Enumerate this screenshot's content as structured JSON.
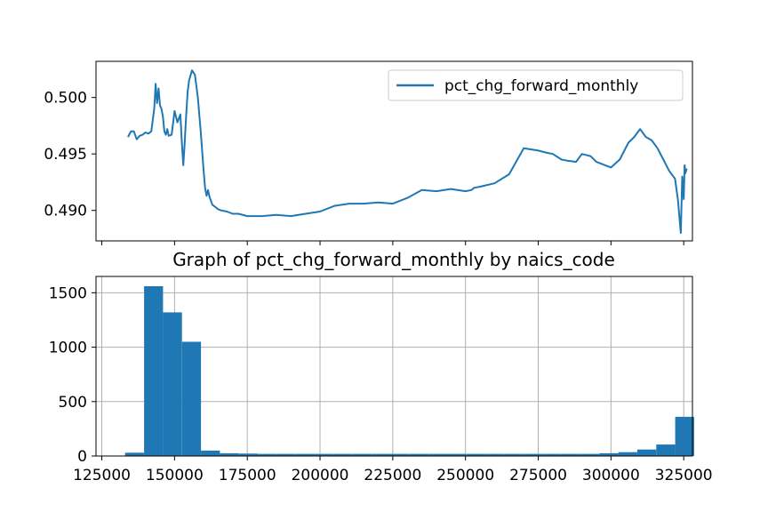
{
  "chart_data": [
    {
      "type": "line",
      "title": "",
      "xlabel": "",
      "ylabel": "",
      "x_shared_with_histogram": true,
      "x": [
        134000,
        135000,
        136000,
        137000,
        138000,
        139000,
        140000,
        141000,
        142000,
        143000,
        143500,
        144000,
        144500,
        145000,
        145500,
        146000,
        146500,
        147000,
        147500,
        148000,
        149000,
        150000,
        151000,
        152000,
        152500,
        153000,
        153500,
        154000,
        154500,
        155000,
        156000,
        157000,
        158000,
        159000,
        160000,
        160500,
        161000,
        161500,
        162000,
        163000,
        164000,
        165000,
        166000,
        168000,
        170000,
        172000,
        175000,
        180000,
        185000,
        190000,
        195000,
        200000,
        205000,
        210000,
        215000,
        220000,
        225000,
        230000,
        235000,
        240000,
        245000,
        250000,
        252000,
        253000,
        255000,
        260000,
        265000,
        270000,
        275000,
        278000,
        280000,
        283000,
        285000,
        288000,
        290000,
        293000,
        295000,
        298000,
        300000,
        303000,
        306000,
        308000,
        310000,
        312000,
        314000,
        316000,
        318000,
        320000,
        322000,
        323000,
        324000,
        324500,
        325000,
        325300,
        325600,
        326000
      ],
      "series": [
        {
          "name": "pct_chg_forward_monthly",
          "color": "#1f77b4",
          "values": [
            0.4965,
            0.497,
            0.497,
            0.4963,
            0.4966,
            0.4967,
            0.4969,
            0.4968,
            0.497,
            0.499,
            0.5012,
            0.4995,
            0.5008,
            0.4993,
            0.499,
            0.4983,
            0.497,
            0.4967,
            0.4972,
            0.4966,
            0.4967,
            0.4988,
            0.4978,
            0.4985,
            0.496,
            0.494,
            0.496,
            0.4985,
            0.5005,
            0.5015,
            0.5024,
            0.502,
            0.5,
            0.497,
            0.4935,
            0.492,
            0.4913,
            0.4918,
            0.4912,
            0.4905,
            0.4903,
            0.4901,
            0.49,
            0.4899,
            0.4897,
            0.4897,
            0.4895,
            0.4895,
            0.4896,
            0.4895,
            0.4897,
            0.4899,
            0.4904,
            0.4906,
            0.4906,
            0.4907,
            0.4906,
            0.4911,
            0.4918,
            0.4917,
            0.4919,
            0.4917,
            0.4918,
            0.492,
            0.4921,
            0.4924,
            0.4932,
            0.4955,
            0.4953,
            0.4951,
            0.495,
            0.4945,
            0.4944,
            0.4943,
            0.495,
            0.4948,
            0.4943,
            0.494,
            0.4938,
            0.4945,
            0.496,
            0.4965,
            0.4972,
            0.4965,
            0.4962,
            0.4955,
            0.4945,
            0.4935,
            0.4928,
            0.491,
            0.488,
            0.493,
            0.491,
            0.494,
            0.4933,
            0.4937
          ]
        }
      ],
      "xlim": [
        123000,
        328000
      ],
      "ylim": [
        0.4873,
        0.5032
      ],
      "yticks": [
        0.49,
        0.495,
        0.5
      ],
      "ytick_labels": [
        "0.490",
        "0.495",
        "0.500"
      ],
      "xticks": [
        125000,
        150000,
        175000,
        200000,
        225000,
        250000,
        275000,
        300000,
        325000
      ],
      "xtick_labels_visible": false,
      "grid": false,
      "legend": {
        "position": "top-right",
        "entries": [
          "pct_chg_forward_monthly"
        ]
      }
    },
    {
      "type": "bar",
      "subtype": "histogram",
      "title": "Graph of pct_chg_forward_monthly by naics_code",
      "xlabel": "",
      "ylabel": "",
      "color": "#1f77b4",
      "bin_edges": [
        133000,
        139520,
        146040,
        152560,
        159080,
        165600,
        172120,
        178640,
        185160,
        191680,
        198200,
        204720,
        211240,
        217760,
        224280,
        230800,
        237320,
        243840,
        250360,
        256880,
        263400,
        269920,
        276440,
        282960,
        289480,
        296000,
        302520,
        309040,
        315560,
        322080,
        328600
      ],
      "values": [
        30,
        1560,
        1320,
        1050,
        50,
        25,
        22,
        20,
        20,
        20,
        20,
        20,
        20,
        20,
        20,
        20,
        20,
        20,
        20,
        20,
        20,
        20,
        20,
        20,
        20,
        25,
        35,
        60,
        105,
        360
      ],
      "xlim": [
        123000,
        328000
      ],
      "ylim": [
        0,
        1650
      ],
      "xticks": [
        125000,
        150000,
        175000,
        200000,
        225000,
        250000,
        275000,
        300000,
        325000
      ],
      "xtick_labels": [
        "125000",
        "150000",
        "175000",
        "200000",
        "225000",
        "250000",
        "275000",
        "300000",
        "325000"
      ],
      "yticks": [
        0,
        500,
        1000,
        1500
      ],
      "ytick_labels": [
        "0",
        "500",
        "1000",
        "1500"
      ],
      "grid": true
    }
  ]
}
